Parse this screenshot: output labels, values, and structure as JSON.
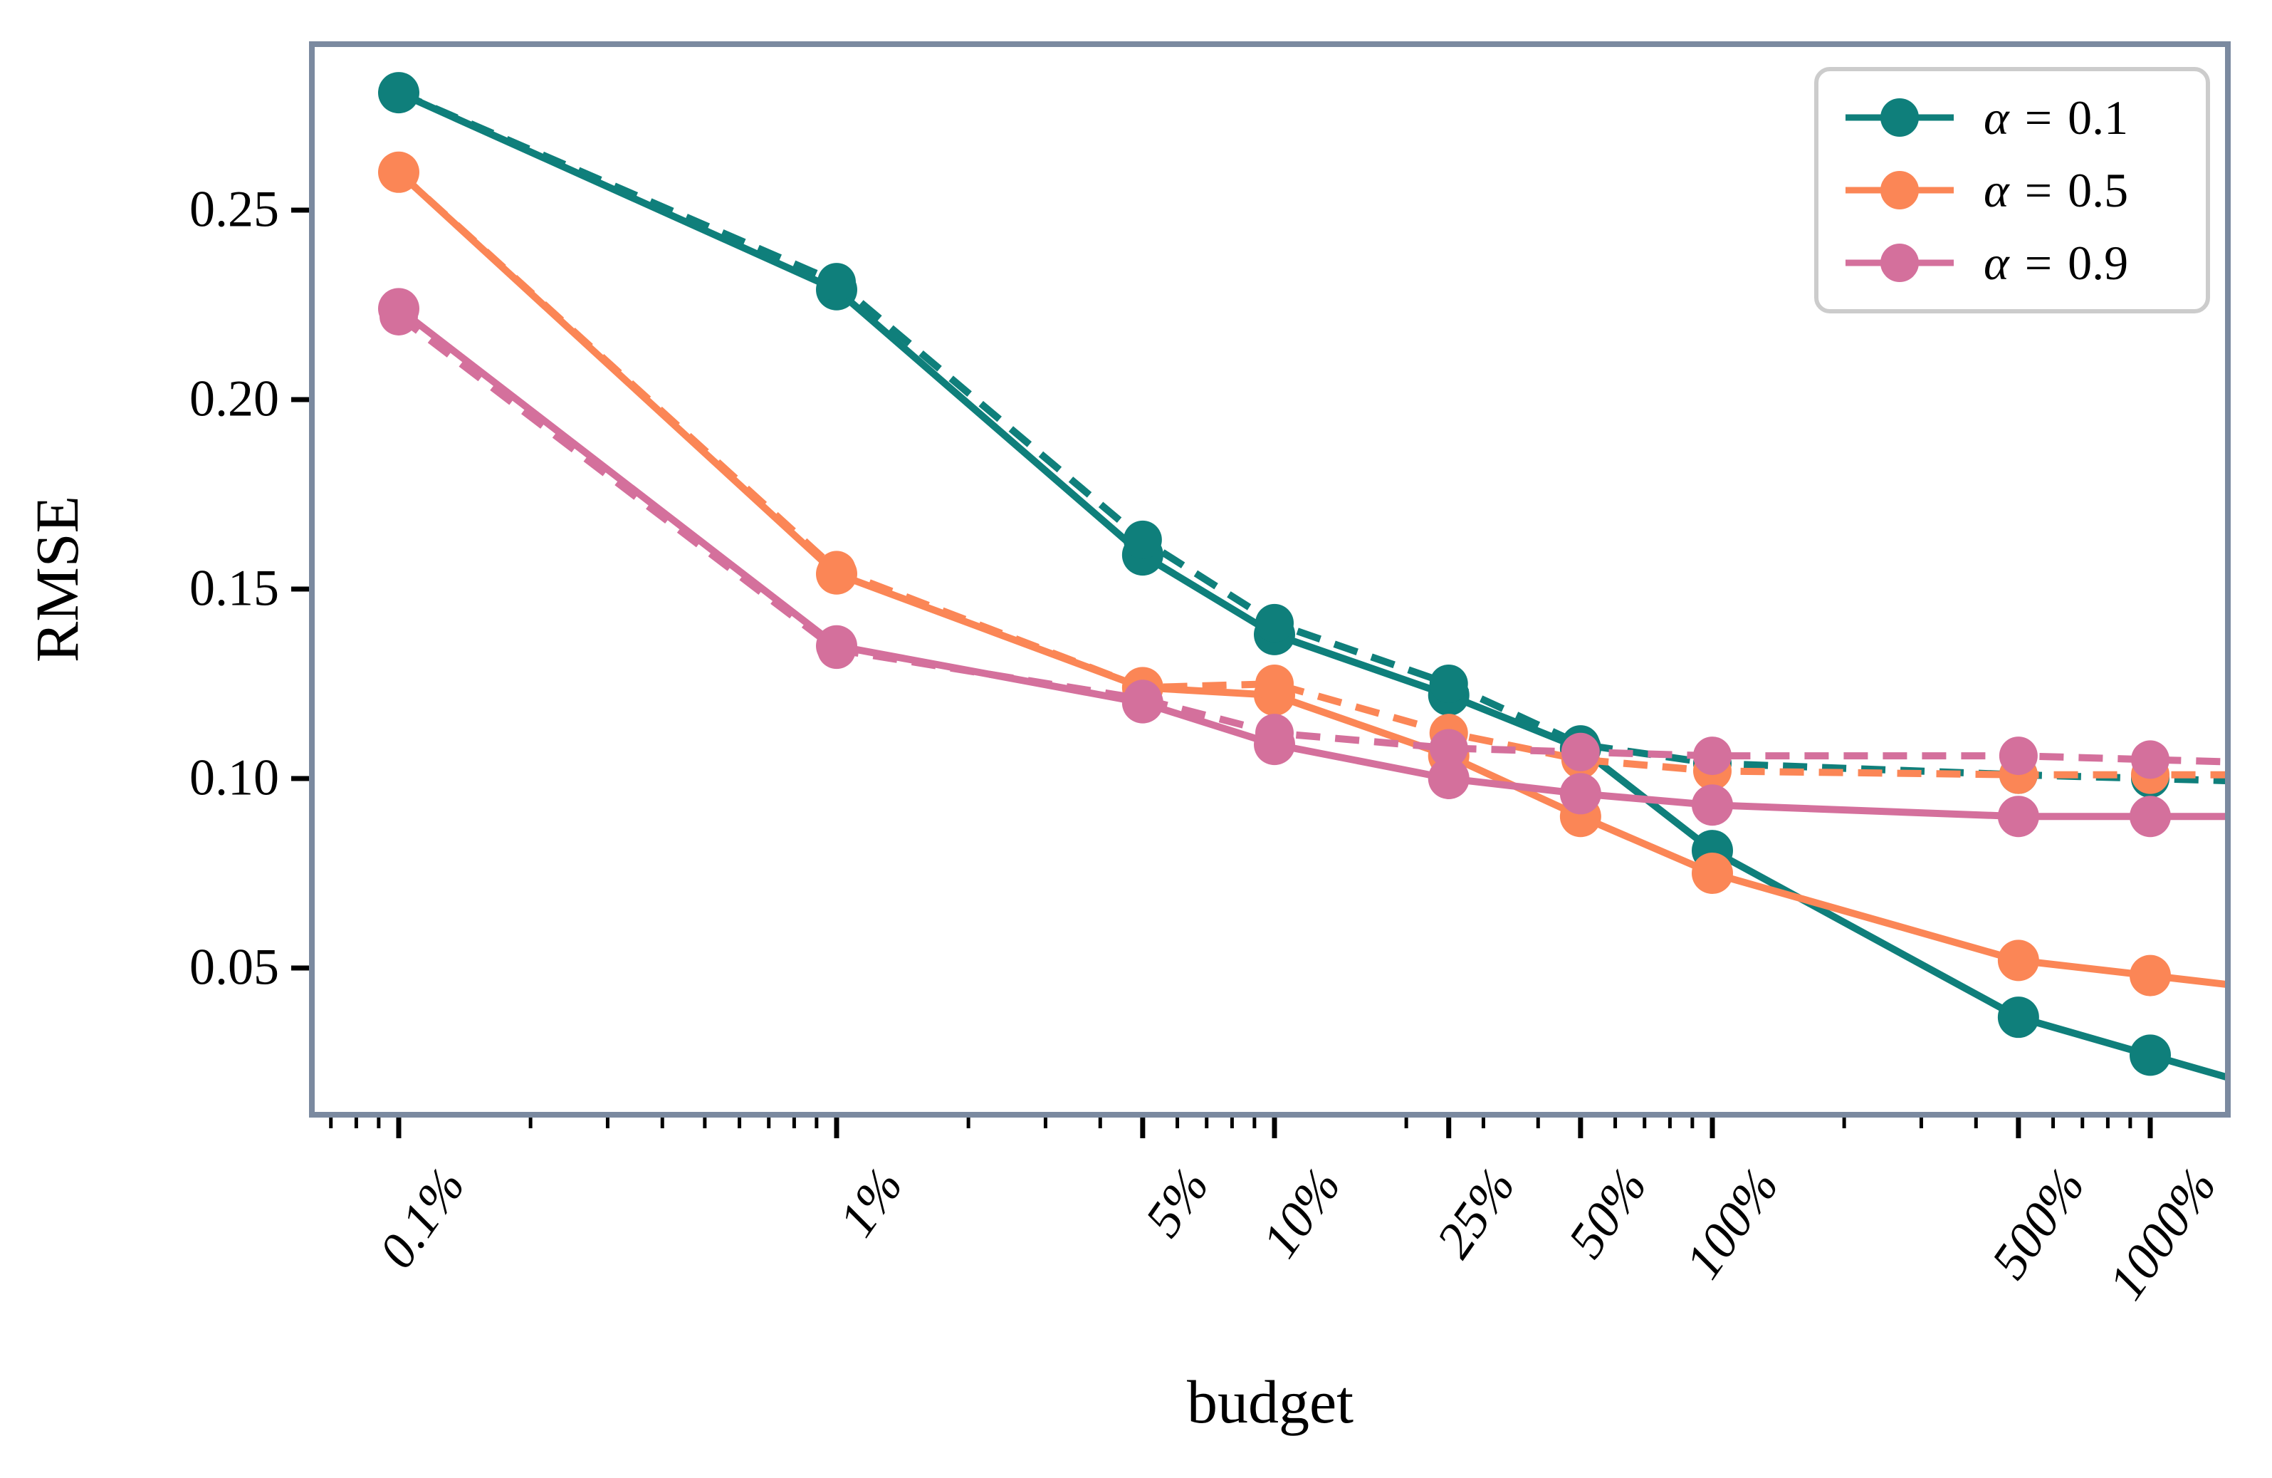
{
  "figure": {
    "ylabel": "RMSE",
    "xlabel": "budget",
    "background_color": "#ffffff",
    "frame_color": "#7b8aa0",
    "tick_color": "#000000",
    "legend_border_color": "#cccccc"
  },
  "legend": {
    "position": "upper right",
    "items": [
      {
        "symbol": "α",
        "eq": "=",
        "value": "0.1",
        "color": "#0f7f7b"
      },
      {
        "symbol": "α",
        "eq": "=",
        "value": "0.5",
        "color": "#fb8656"
      },
      {
        "symbol": "α",
        "eq": "=",
        "value": "0.9",
        "color": "#d4709c"
      }
    ]
  },
  "chart_data": {
    "type": "line",
    "title": "",
    "xlabel": "budget",
    "ylabel": "RMSE",
    "xscale": "log",
    "grid": false,
    "legend_position": "upper right",
    "x_percent": [
      0.1,
      1,
      5,
      10,
      25,
      50,
      100,
      500,
      1000
    ],
    "x_tick_labels": [
      "0.1%",
      "1%",
      "5%",
      "10%",
      "25%",
      "50%",
      "100%",
      "500%",
      "1000%"
    ],
    "yticks": [
      0.05,
      0.1,
      0.15,
      0.2,
      0.25
    ],
    "y_tick_labels": [
      "0.05",
      "0.10",
      "0.15",
      "0.20",
      "0.25"
    ],
    "ylim": [
      0.011,
      0.294
    ],
    "xlim_log10_percent": [
      -1.2,
      3.18
    ],
    "series": [
      {
        "name": "alpha = 0.1 (solid)",
        "legend": "α = 0.1",
        "style": "solid",
        "color": "#0f7f7b",
        "values": [
          0.281,
          0.229,
          0.159,
          0.138,
          0.122,
          0.108,
          0.081,
          0.037,
          0.027
        ]
      },
      {
        "name": "alpha = 0.1 (dashed)",
        "legend": "",
        "style": "dashed",
        "color": "#0f7f7b",
        "values": [
          0.281,
          0.231,
          0.163,
          0.141,
          0.125,
          0.109,
          0.104,
          0.101,
          0.1
        ]
      },
      {
        "name": "alpha = 0.5 (solid)",
        "legend": "α = 0.5",
        "style": "solid",
        "color": "#fb8656",
        "values": [
          0.26,
          0.154,
          0.124,
          0.122,
          0.106,
          0.09,
          0.075,
          0.052,
          0.048
        ]
      },
      {
        "name": "alpha = 0.5 (dashed)",
        "legend": "",
        "style": "dashed",
        "color": "#fb8656",
        "values": [
          0.26,
          0.155,
          0.124,
          0.125,
          0.112,
          0.105,
          0.102,
          0.101,
          0.101
        ]
      },
      {
        "name": "alpha = 0.9 (solid)",
        "legend": "α = 0.9",
        "style": "solid",
        "color": "#d4709c",
        "values": [
          0.224,
          0.135,
          0.12,
          0.109,
          0.1,
          0.096,
          0.093,
          0.09,
          0.09
        ]
      },
      {
        "name": "alpha = 0.9 (dashed)",
        "legend": "",
        "style": "dashed",
        "color": "#d4709c",
        "values": [
          0.222,
          0.134,
          0.121,
          0.112,
          0.108,
          0.107,
          0.106,
          0.106,
          0.105
        ]
      }
    ]
  }
}
